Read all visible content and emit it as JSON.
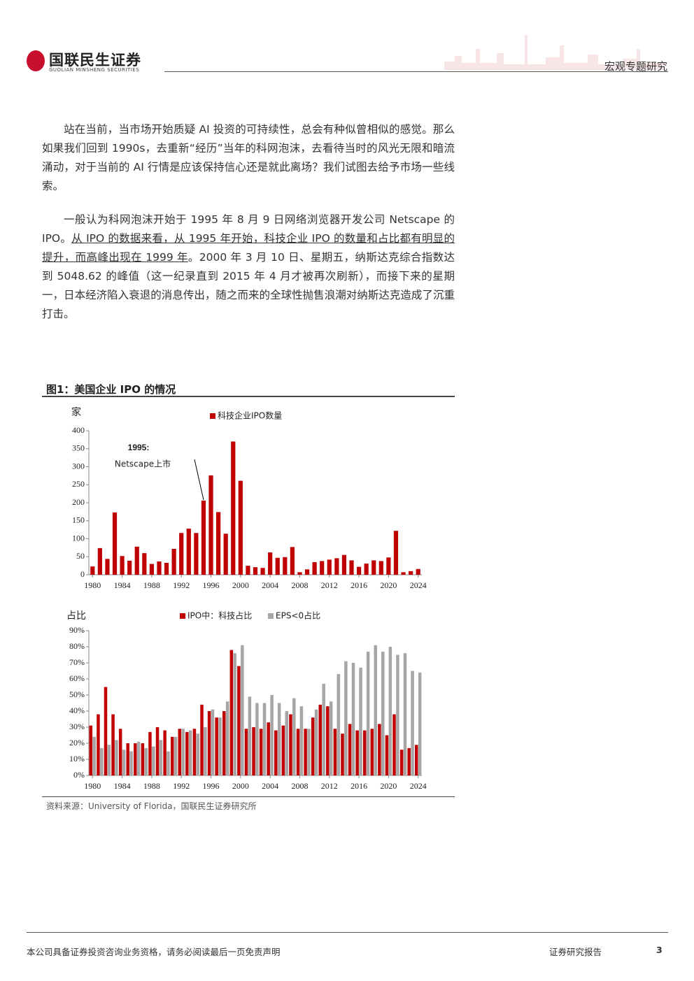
{
  "header": {
    "brand": "国联民生证券",
    "brand_en": "GUOLIAN MINSHENG SECURITIES",
    "section": "宏观专题研究"
  },
  "paragraphs": [
    [
      "站在当前，当市场开始质疑 AI 投资的可持续性，总会有种似曾相似的感觉。那么如果我们回到 1990s，去重新“经历”当年的科网泡沫，去看待当时的风光无限和暗流涌动，对于当前的 AI 行情是应该保持信心还是就此离场？我们试图去给予市场一些线索。"
    ],
    [
      "一般认为科网泡沫开始于 1995 年 8 月 9 日网络浏览器开发公司 Netscape 的 IPO。",
      "从 IPO 的数据来看，从 1995 年开始，科技企业 IPO 的数量和占比都有明显的提升，而高峰出现在 1999 年",
      "。2000 年 3 月 10 日、星期五，纳斯达克综合指数达到 5048.62 的峰值（这一纪录直到 2015 年 4 月才被再次刷新），而接下来的星期一，日本经济陷入衰退的消息传出，随之而来的全球性抛售浪潮对纳斯达克造成了沉重打击。"
    ]
  ],
  "figure": {
    "title": "图1：美国企业 IPO 的情况",
    "source": "资料来源：University of Florida，国联民生证券研究所"
  },
  "chart_data": [
    {
      "type": "bar",
      "y_label": "家",
      "x": [
        1980,
        1981,
        1982,
        1983,
        1984,
        1985,
        1986,
        1987,
        1988,
        1989,
        1990,
        1991,
        1992,
        1993,
        1994,
        1995,
        1996,
        1997,
        1998,
        1999,
        2000,
        2001,
        2002,
        2003,
        2004,
        2005,
        2006,
        2007,
        2008,
        2009,
        2010,
        2011,
        2012,
        2013,
        2014,
        2015,
        2016,
        2017,
        2018,
        2019,
        2020,
        2021,
        2022,
        2023,
        2024
      ],
      "xlim": [
        1979.5,
        2024.5
      ],
      "xticks": [
        1980,
        1984,
        1988,
        1992,
        1996,
        2000,
        2004,
        2008,
        2012,
        2016,
        2020,
        2024
      ],
      "ylim": [
        0,
        400
      ],
      "yticks": [
        0,
        50,
        100,
        150,
        200,
        250,
        300,
        350,
        400
      ],
      "series": [
        {
          "name": "科技企业IPO数量",
          "color": "#c00000",
          "values": [
            23,
            74,
            44,
            173,
            52,
            39,
            78,
            60,
            30,
            37,
            33,
            72,
            116,
            128,
            116,
            206,
            276,
            174,
            114,
            370,
            261,
            25,
            21,
            19,
            62,
            47,
            49,
            77,
            7,
            15,
            35,
            38,
            42,
            46,
            55,
            40,
            22,
            31,
            40,
            38,
            48,
            122,
            7,
            10,
            16
          ]
        }
      ],
      "annotations": [
        "1995:",
        "Netscape上市"
      ]
    },
    {
      "type": "bar",
      "y_label": "占比",
      "x": [
        1980,
        1981,
        1982,
        1983,
        1984,
        1985,
        1986,
        1987,
        1988,
        1989,
        1990,
        1991,
        1992,
        1993,
        1994,
        1995,
        1996,
        1997,
        1998,
        1999,
        2000,
        2001,
        2002,
        2003,
        2004,
        2005,
        2006,
        2007,
        2008,
        2009,
        2010,
        2011,
        2012,
        2013,
        2014,
        2015,
        2016,
        2017,
        2018,
        2019,
        2020,
        2021,
        2022,
        2023,
        2024
      ],
      "xlim": [
        1979.5,
        2024.5
      ],
      "xticks": [
        1980,
        1984,
        1988,
        1992,
        1996,
        2000,
        2004,
        2008,
        2012,
        2016,
        2020,
        2024
      ],
      "ylim": [
        0,
        90
      ],
      "yticks": [
        {
          "value": 0,
          "label": "0%"
        },
        {
          "value": 10,
          "label": "10%"
        },
        {
          "value": 20,
          "label": "20%"
        },
        {
          "value": 30,
          "label": "30%"
        },
        {
          "value": 40,
          "label": "40%"
        },
        {
          "value": 50,
          "label": "50%"
        },
        {
          "value": 60,
          "label": "60%"
        },
        {
          "value": 70,
          "label": "70%"
        },
        {
          "value": 80,
          "label": "80%"
        },
        {
          "value": 90,
          "label": "90%"
        }
      ],
      "series": [
        {
          "name": "IPO中：科技占比",
          "color": "#c00000",
          "values": [
            31,
            38,
            55,
            38,
            29,
            20,
            20,
            20,
            27,
            30,
            28,
            24,
            29,
            27,
            29,
            44,
            40,
            36,
            40,
            78,
            68,
            29,
            30,
            29,
            33,
            28,
            31,
            38,
            29,
            29,
            36,
            44,
            43,
            29,
            26,
            32,
            28,
            28,
            29,
            32,
            25,
            38,
            16,
            17,
            19
          ]
        },
        {
          "name": "EPS<0占比",
          "color": "#a6a6a6",
          "values": [
            24,
            17,
            19,
            22,
            16,
            15,
            21,
            17,
            18,
            22,
            15,
            24,
            29,
            28,
            26,
            30,
            41,
            36,
            46,
            76,
            81,
            49,
            45,
            45,
            50,
            45,
            40,
            48,
            43,
            29,
            41,
            57,
            46,
            63,
            71,
            70,
            67,
            77,
            81,
            77,
            80,
            75,
            76,
            65,
            64
          ]
        }
      ]
    }
  ],
  "footer": {
    "disclaimer": "本公司具备证券投资咨询业务资格，请务必阅读最后一页免责声明",
    "label": "证券研究报告",
    "page": "3"
  }
}
